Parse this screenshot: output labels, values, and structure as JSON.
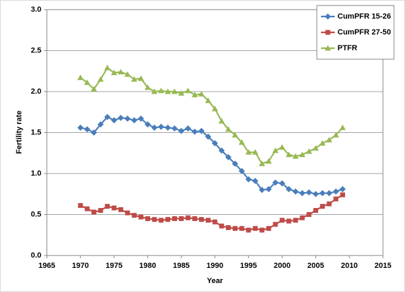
{
  "chart_data": {
    "type": "line",
    "xlabel": "Year",
    "ylabel": "Fertility rate",
    "x": [
      1970,
      1971,
      1972,
      1973,
      1974,
      1975,
      1976,
      1977,
      1978,
      1979,
      1980,
      1981,
      1982,
      1983,
      1984,
      1985,
      1986,
      1987,
      1988,
      1989,
      1990,
      1991,
      1992,
      1993,
      1994,
      1995,
      1996,
      1997,
      1998,
      1999,
      2000,
      2001,
      2002,
      2003,
      2004,
      2005,
      2006,
      2007,
      2008,
      2009
    ],
    "series": [
      {
        "name": "CumPFR 15-26",
        "color": "#4a7ebb",
        "marker": "diamond",
        "values": [
          1.56,
          1.54,
          1.5,
          1.6,
          1.69,
          1.65,
          1.68,
          1.67,
          1.65,
          1.67,
          1.6,
          1.56,
          1.57,
          1.56,
          1.55,
          1.52,
          1.55,
          1.51,
          1.52,
          1.45,
          1.37,
          1.28,
          1.2,
          1.12,
          1.03,
          0.93,
          0.91,
          0.8,
          0.81,
          0.89,
          0.88,
          0.81,
          0.78,
          0.76,
          0.77,
          0.75,
          0.76,
          0.76,
          0.78,
          0.81
        ]
      },
      {
        "name": "CumPFR 27-50",
        "color": "#be4b48",
        "marker": "square",
        "values": [
          0.61,
          0.57,
          0.53,
          0.55,
          0.6,
          0.58,
          0.56,
          0.52,
          0.49,
          0.47,
          0.45,
          0.44,
          0.43,
          0.44,
          0.45,
          0.45,
          0.46,
          0.45,
          0.44,
          0.43,
          0.41,
          0.36,
          0.34,
          0.33,
          0.33,
          0.31,
          0.33,
          0.31,
          0.33,
          0.38,
          0.43,
          0.42,
          0.43,
          0.46,
          0.5,
          0.55,
          0.6,
          0.63,
          0.69,
          0.74
        ]
      },
      {
        "name": "PTFR",
        "color": "#98b954",
        "marker": "triangle",
        "values": [
          2.17,
          2.11,
          2.03,
          2.15,
          2.29,
          2.23,
          2.24,
          2.21,
          2.15,
          2.16,
          2.05,
          2.0,
          2.01,
          2.0,
          2.0,
          1.98,
          2.01,
          1.96,
          1.97,
          1.89,
          1.79,
          1.64,
          1.54,
          1.47,
          1.38,
          1.26,
          1.26,
          1.12,
          1.15,
          1.28,
          1.32,
          1.23,
          1.21,
          1.23,
          1.27,
          1.31,
          1.37,
          1.41,
          1.47,
          1.56
        ]
      }
    ],
    "xlim": [
      1965,
      2015
    ],
    "xticks": [
      1965,
      1970,
      1975,
      1980,
      1985,
      1990,
      1995,
      2000,
      2005,
      2010,
      2015
    ],
    "ylim": [
      0,
      3
    ],
    "yticks": [
      {
        "value": 0,
        "label": "0.0"
      },
      0.5,
      {
        "value": 1,
        "label": "1.0"
      },
      1.5,
      {
        "value": 2,
        "label": "2.0"
      },
      2.5,
      {
        "value": 3,
        "label": "3.0"
      }
    ],
    "grid": true,
    "legend": "upper right"
  }
}
